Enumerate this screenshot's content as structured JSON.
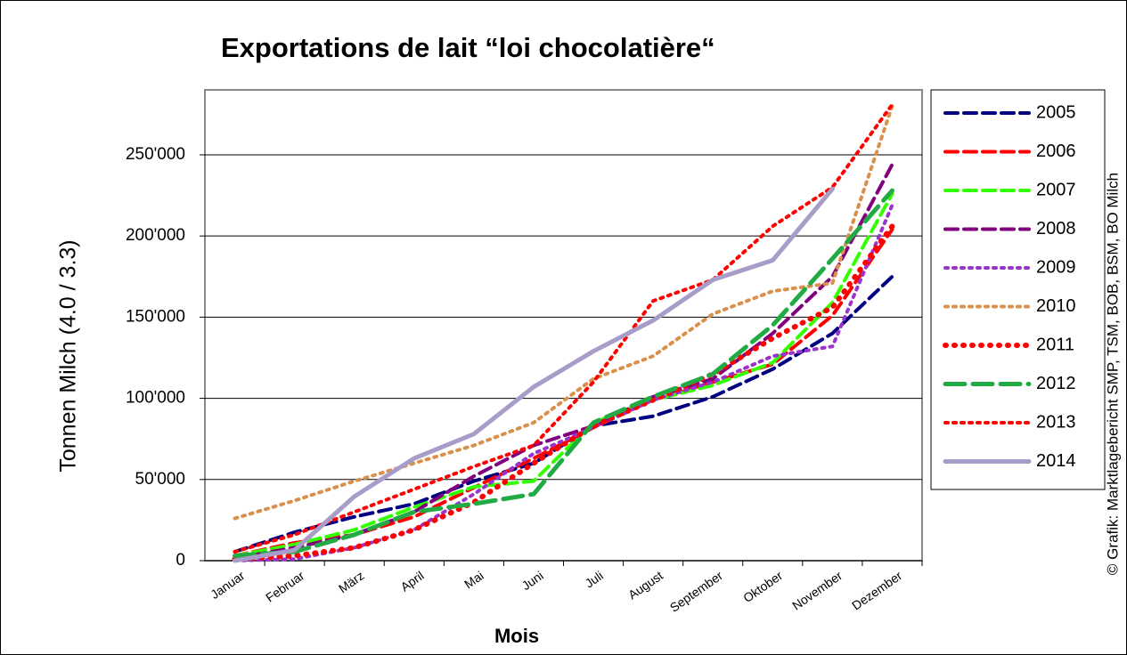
{
  "chart_data": {
    "type": "line",
    "title": "Exportations de lait “loi chocolatière“",
    "x_label": "Mois",
    "y_label": "Tonnen Milch (4.0 / 3.3)",
    "source": "© Grafik: Marktlagebericht SMP, TSM, BOB, BSM, BO Milch",
    "categories": [
      "Januar",
      "Februar",
      "März",
      "April",
      "Mai",
      "Juni",
      "Juli",
      "August",
      "September",
      "Oktober",
      "November",
      "Dezember"
    ],
    "ylim": [
      0,
      290000
    ],
    "yticks": [
      0,
      {
        "value": 50000,
        "label": "50'000"
      },
      {
        "value": 100000,
        "label": "100'000"
      },
      {
        "value": 150000,
        "label": "150'000"
      },
      {
        "value": 200000,
        "label": "200'000"
      },
      {
        "value": 250000,
        "label": "250'000"
      }
    ],
    "grid": true,
    "legend": "right",
    "series": [
      {
        "name": "2005",
        "color": "#000080",
        "style": "dashed",
        "values": [
          5500,
          17500,
          27000,
          35000,
          49000,
          60000,
          83000,
          89000,
          101000,
          118000,
          140000,
          175000
        ]
      },
      {
        "name": "2006",
        "color": "#ff0000",
        "style": "dashed",
        "values": [
          3000,
          11000,
          16000,
          27000,
          45000,
          63000,
          82000,
          99000,
          110000,
          121000,
          151000,
          204000
        ]
      },
      {
        "name": "2007",
        "color": "#33ff00",
        "style": "dashed",
        "values": [
          3000,
          10000,
          19000,
          33000,
          45500,
          49000,
          85000,
          99000,
          108000,
          122000,
          159000,
          226000
        ]
      },
      {
        "name": "2008",
        "color": "#800080",
        "style": "dashed",
        "values": [
          1500,
          8000,
          16000,
          30000,
          52000,
          71000,
          83000,
          101000,
          112000,
          140000,
          175000,
          244000
        ]
      },
      {
        "name": "2009",
        "color": "#9933cc",
        "style": "dotted",
        "values": [
          0,
          1000,
          8000,
          19000,
          41000,
          66000,
          82000,
          99000,
          110000,
          126000,
          132000,
          219000
        ]
      },
      {
        "name": "2010",
        "color": "#d9904a",
        "style": "dotted",
        "values": [
          26000,
          37000,
          49000,
          60000,
          71000,
          85000,
          112000,
          126000,
          152000,
          166000,
          171000,
          280000
        ]
      },
      {
        "name": "2011",
        "color": "#ff0000",
        "style": "bigdotted",
        "values": [
          1000,
          3000,
          8000,
          19000,
          36000,
          60000,
          83000,
          99000,
          115000,
          137000,
          156000,
          206000
        ]
      },
      {
        "name": "2012",
        "color": "#22aa44",
        "style": "longdashed",
        "values": [
          3000,
          5500,
          16000,
          30000,
          35000,
          41000,
          85000,
          101000,
          115000,
          145000,
          186000,
          228000
        ]
      },
      {
        "name": "2013",
        "color": "#ff0000",
        "style": "dotted",
        "values": [
          5500,
          16000,
          30000,
          44000,
          58000,
          71000,
          110000,
          160000,
          173000,
          206000,
          230000,
          281000
        ]
      },
      {
        "name": "2014",
        "color": "#a89cc8",
        "style": "solid",
        "values": [
          0,
          6500,
          39500,
          63000,
          78000,
          107000,
          129000,
          148000,
          173000,
          185000,
          229000,
          null
        ]
      }
    ]
  }
}
